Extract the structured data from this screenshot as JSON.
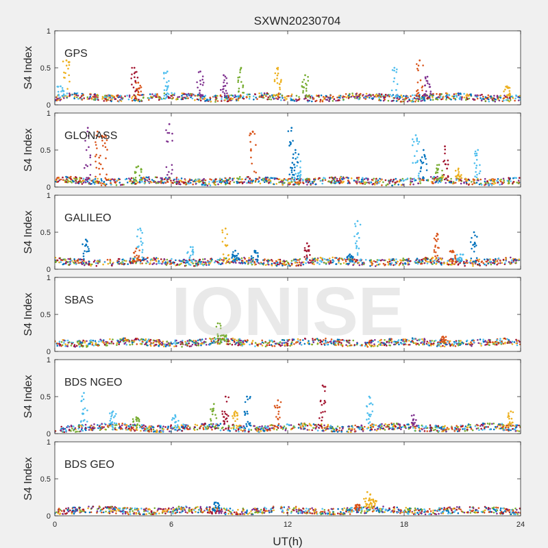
{
  "figure": {
    "title": "SXWN20230704",
    "xlabel": "UT(h)",
    "watermark": "IONISE"
  },
  "chart_data": {
    "type": "scatter",
    "title": "SXWN20230704",
    "xlabel": "UT(h)",
    "xlim": [
      0,
      24
    ],
    "xticks": [
      0,
      6,
      12,
      18,
      24
    ],
    "grid": false,
    "colors": [
      "#0072BD",
      "#D95319",
      "#EDB120",
      "#7E2F8E",
      "#77AC30",
      "#4DBEEE",
      "#A2142F"
    ],
    "panels": [
      {
        "name": "GPS",
        "ylabel": "S4 Index",
        "ylim": [
          0,
          1
        ],
        "yticks": [
          0,
          0.5,
          1
        ],
        "baseline": 0.1,
        "spikes": [
          {
            "x": 0.6,
            "y": 0.6,
            "c": 2
          },
          {
            "x": 0.3,
            "y": 0.25,
            "c": 5
          },
          {
            "x": 4.1,
            "y": 0.5,
            "c": 6
          },
          {
            "x": 4.3,
            "y": 0.3,
            "c": 1
          },
          {
            "x": 5.8,
            "y": 0.45,
            "c": 5
          },
          {
            "x": 7.5,
            "y": 0.45,
            "c": 3
          },
          {
            "x": 8.7,
            "y": 0.4,
            "c": 3
          },
          {
            "x": 9.6,
            "y": 0.5,
            "c": 4
          },
          {
            "x": 11.5,
            "y": 0.5,
            "c": 2
          },
          {
            "x": 12.9,
            "y": 0.4,
            "c": 4
          },
          {
            "x": 17.5,
            "y": 0.5,
            "c": 5
          },
          {
            "x": 18.8,
            "y": 0.6,
            "c": 1
          },
          {
            "x": 19.2,
            "y": 0.38,
            "c": 3
          },
          {
            "x": 23.3,
            "y": 0.25,
            "c": 2
          }
        ]
      },
      {
        "name": "GLONASS",
        "ylabel": "S4 Index",
        "ylim": [
          0,
          1
        ],
        "yticks": [
          0,
          0.5,
          1
        ],
        "baseline": 0.08,
        "spikes": [
          {
            "x": 2.2,
            "y": 0.75,
            "c": 1
          },
          {
            "x": 2.6,
            "y": 0.7,
            "c": 1
          },
          {
            "x": 1.7,
            "y": 0.8,
            "c": 3
          },
          {
            "x": 4.3,
            "y": 0.28,
            "c": 4
          },
          {
            "x": 5.9,
            "y": 0.85,
            "c": 3
          },
          {
            "x": 10.2,
            "y": 0.75,
            "c": 1
          },
          {
            "x": 12.4,
            "y": 0.5,
            "c": 0
          },
          {
            "x": 12.2,
            "y": 0.8,
            "c": 0
          },
          {
            "x": 12.5,
            "y": 0.4,
            "c": 5
          },
          {
            "x": 18.6,
            "y": 0.7,
            "c": 5
          },
          {
            "x": 19.0,
            "y": 0.5,
            "c": 0
          },
          {
            "x": 20.1,
            "y": 0.55,
            "c": 6
          },
          {
            "x": 19.8,
            "y": 0.3,
            "c": 4
          },
          {
            "x": 21.8,
            "y": 0.5,
            "c": 5
          },
          {
            "x": 20.8,
            "y": 0.25,
            "c": 2
          }
        ]
      },
      {
        "name": "GALILEO",
        "ylabel": "S4 Index",
        "ylim": [
          0,
          1
        ],
        "yticks": [
          0,
          0.5,
          1
        ],
        "baseline": 0.1,
        "spikes": [
          {
            "x": 1.6,
            "y": 0.4,
            "c": 0
          },
          {
            "x": 4.4,
            "y": 0.55,
            "c": 5
          },
          {
            "x": 4.2,
            "y": 0.28,
            "c": 1
          },
          {
            "x": 7.0,
            "y": 0.3,
            "c": 5
          },
          {
            "x": 8.8,
            "y": 0.55,
            "c": 2
          },
          {
            "x": 9.3,
            "y": 0.25,
            "c": 0
          },
          {
            "x": 10.3,
            "y": 0.25,
            "c": 0
          },
          {
            "x": 13.0,
            "y": 0.35,
            "c": 6
          },
          {
            "x": 15.6,
            "y": 0.65,
            "c": 5
          },
          {
            "x": 15.2,
            "y": 0.2,
            "c": 0
          },
          {
            "x": 19.7,
            "y": 0.48,
            "c": 1
          },
          {
            "x": 20.5,
            "y": 0.25,
            "c": 1
          },
          {
            "x": 21.6,
            "y": 0.5,
            "c": 0
          },
          {
            "x": 20.9,
            "y": 0.2,
            "c": 5
          }
        ]
      },
      {
        "name": "SBAS",
        "ylabel": "S4 Index",
        "ylim": [
          0,
          1
        ],
        "yticks": [
          0,
          0.5,
          1
        ],
        "baseline": 0.12,
        "spikes": [
          {
            "x": 8.4,
            "y": 0.38,
            "c": 4
          },
          {
            "x": 8.7,
            "y": 0.22,
            "c": 4
          },
          {
            "x": 20.0,
            "y": 0.2,
            "c": 1
          }
        ]
      },
      {
        "name": "BDS NGEO",
        "ylabel": "S4 Index",
        "ylim": [
          0,
          1
        ],
        "yticks": [
          0,
          0.5,
          1
        ],
        "baseline": 0.08,
        "spikes": [
          {
            "x": 1.5,
            "y": 0.55,
            "c": 5
          },
          {
            "x": 3.0,
            "y": 0.3,
            "c": 5
          },
          {
            "x": 4.2,
            "y": 0.22,
            "c": 4
          },
          {
            "x": 6.2,
            "y": 0.25,
            "c": 5
          },
          {
            "x": 8.2,
            "y": 0.4,
            "c": 4
          },
          {
            "x": 8.8,
            "y": 0.5,
            "c": 6
          },
          {
            "x": 9.9,
            "y": 0.5,
            "c": 0
          },
          {
            "x": 9.3,
            "y": 0.3,
            "c": 2
          },
          {
            "x": 11.5,
            "y": 0.45,
            "c": 1
          },
          {
            "x": 13.8,
            "y": 0.65,
            "c": 6
          },
          {
            "x": 16.2,
            "y": 0.5,
            "c": 5
          },
          {
            "x": 18.5,
            "y": 0.25,
            "c": 3
          },
          {
            "x": 23.5,
            "y": 0.3,
            "c": 2
          }
        ]
      },
      {
        "name": "BDS GEO",
        "ylabel": "S4 Index",
        "ylim": [
          0,
          1
        ],
        "yticks": [
          0,
          0.5,
          1
        ],
        "baseline": 0.07,
        "spikes": [
          {
            "x": 8.3,
            "y": 0.18,
            "c": 0
          },
          {
            "x": 16.1,
            "y": 0.32,
            "c": 2
          },
          {
            "x": 16.4,
            "y": 0.22,
            "c": 2
          },
          {
            "x": 15.6,
            "y": 0.15,
            "c": 1
          }
        ]
      }
    ]
  }
}
